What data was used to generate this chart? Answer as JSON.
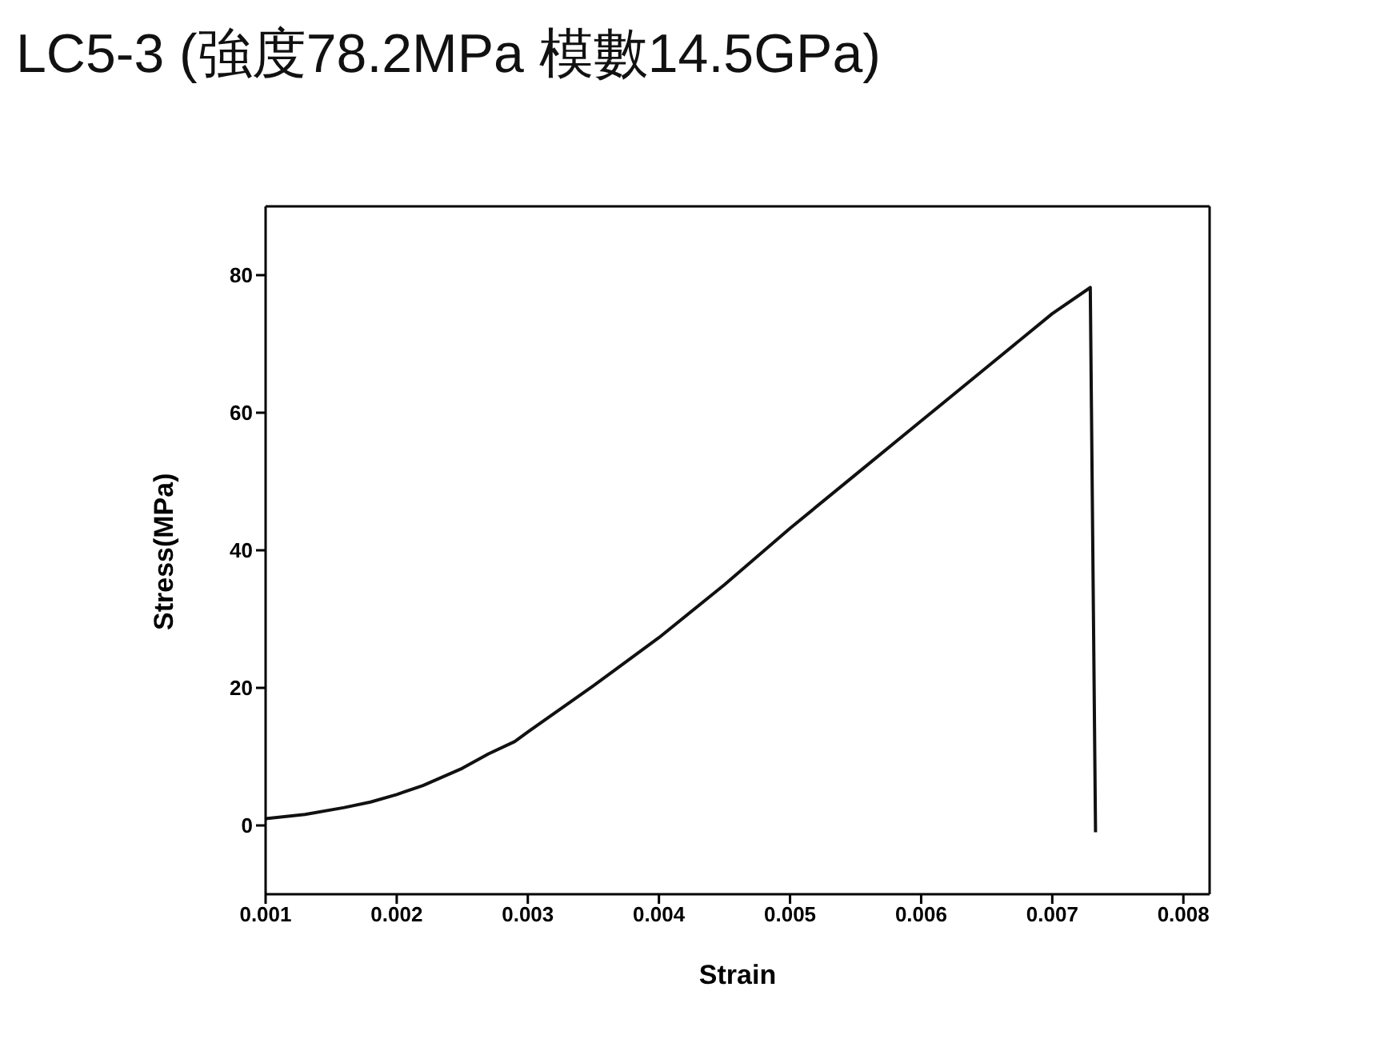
{
  "chart_data": {
    "type": "line",
    "title": "LC5-3 (強度78.2MPa 模數14.5GPa)",
    "xlabel": "Strain",
    "ylabel": "Stress(MPa)",
    "x": [
      0.001,
      0.0013,
      0.0016,
      0.0018,
      0.002,
      0.0022,
      0.0025,
      0.0027,
      0.0029,
      0.003,
      0.0035,
      0.004,
      0.0045,
      0.005,
      0.0055,
      0.006,
      0.0065,
      0.007,
      0.00729,
      0.00733
    ],
    "series": [
      {
        "color": "#111111",
        "values": [
          1,
          1.6,
          2.6,
          3.4,
          4.5,
          5.8,
          8.3,
          10.4,
          12.2,
          13.6,
          20.3,
          27.3,
          35,
          43.2,
          51,
          58.8,
          66.6,
          74.4,
          78.2,
          -1
        ]
      }
    ],
    "xlim": [
      0.001,
      0.0082
    ],
    "xticks": [
      0.001,
      0.002,
      0.003,
      0.004,
      0.005,
      0.006,
      0.007,
      0.008
    ],
    "ylim": [
      -10,
      90
    ],
    "yticks": [
      0,
      20,
      40,
      60,
      80
    ],
    "grid": false,
    "legend": false,
    "marker": "none",
    "line_style": "solid"
  }
}
